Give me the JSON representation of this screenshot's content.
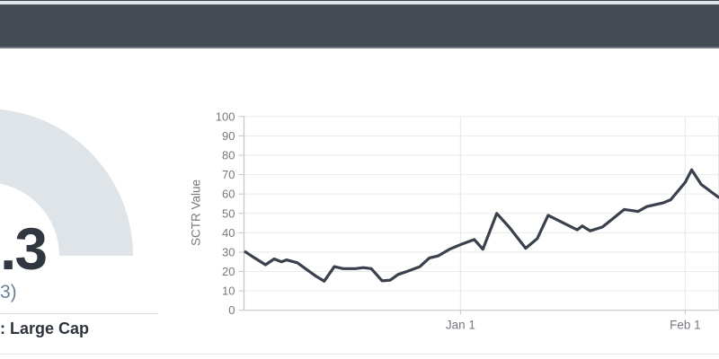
{
  "header": {
    "bar_color": "#444b54",
    "top_strip_color": "#e0e5ea",
    "top_hairline_color": "#3c434d",
    "bottom_edge_color": "#707882"
  },
  "gauge": {
    "visible_value": ".3",
    "visible_subtext": "3)",
    "visible_group_label": ": Large Cap",
    "arc_color": "#dfe4e9",
    "value_color": "#303740",
    "subtext_color": "#6d8195",
    "divider_color": "#d9e0e7",
    "group_label_color": "#2e343d"
  },
  "footer": {
    "border_color": "#e0e8ec"
  },
  "chart_data": {
    "type": "line",
    "title": "",
    "xlabel": "",
    "ylabel": "SCTR Value",
    "ylim": [
      0,
      100
    ],
    "y_ticks": [
      0,
      10,
      20,
      30,
      40,
      50,
      60,
      70,
      80,
      90,
      100
    ],
    "x_unit": "days since first plotted point (~Dec 2)",
    "x_ticks": [
      {
        "label": "Jan 1",
        "day": 29.8
      },
      {
        "label": "Feb 1",
        "day": 60.8
      }
    ],
    "grid": true,
    "legend": false,
    "colors": {
      "grid": "#e9eaeb",
      "vgrid": "#e4e7e9",
      "axis": "#c2c7cb",
      "tick_text": "#75797f"
    },
    "series": [
      {
        "name": "SCTR Value",
        "color": "#3a414d",
        "points": [
          [
            0,
            30.5
          ],
          [
            1.4,
            27
          ],
          [
            2.9,
            23.5
          ],
          [
            4.1,
            26.5
          ],
          [
            5.1,
            25
          ],
          [
            5.8,
            26
          ],
          [
            7.3,
            24.5
          ],
          [
            8.6,
            21
          ],
          [
            9.9,
            17.5
          ],
          [
            11,
            15
          ],
          [
            12.4,
            22.5
          ],
          [
            13.6,
            21.5
          ],
          [
            15.3,
            21.5
          ],
          [
            16.4,
            22
          ],
          [
            17.5,
            21.5
          ],
          [
            19,
            15.2
          ],
          [
            20.1,
            15.5
          ],
          [
            21.2,
            18.5
          ],
          [
            22.4,
            20
          ],
          [
            24.2,
            22.5
          ],
          [
            25.5,
            27
          ],
          [
            26.7,
            28
          ],
          [
            28.3,
            31.5
          ],
          [
            29.9,
            34
          ],
          [
            31.7,
            36.5
          ],
          [
            32.9,
            31.5
          ],
          [
            34.8,
            50
          ],
          [
            36.5,
            43
          ],
          [
            38.8,
            32
          ],
          [
            40.4,
            37
          ],
          [
            41.9,
            49
          ],
          [
            45.9,
            41.5
          ],
          [
            46.6,
            43.5
          ],
          [
            47.7,
            41
          ],
          [
            49.4,
            43
          ],
          [
            52.4,
            52
          ],
          [
            54.3,
            51
          ],
          [
            55.5,
            53.5
          ],
          [
            57.8,
            55.5
          ],
          [
            58.8,
            57
          ],
          [
            60.8,
            66
          ],
          [
            61.7,
            72.5
          ],
          [
            63,
            65
          ],
          [
            65.5,
            58
          ]
        ]
      }
    ]
  }
}
